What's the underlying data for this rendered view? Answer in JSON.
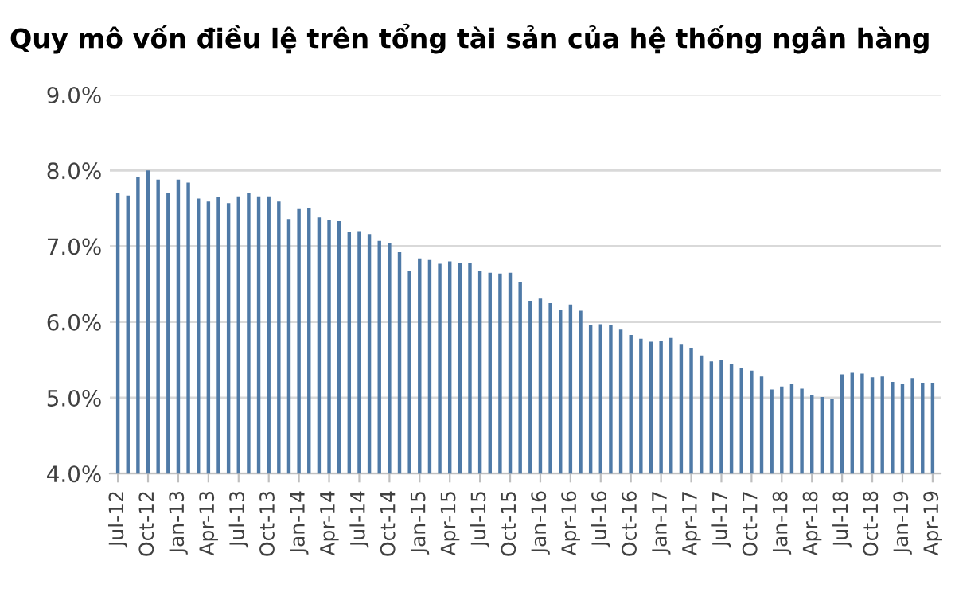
{
  "chart_data": {
    "type": "bar",
    "title": "Quy mô vốn điều lệ trên tổng tài sản của hệ thống ngân hàng",
    "categories": [
      "Jul-12",
      null,
      null,
      "Oct-12",
      null,
      null,
      "Jan-13",
      null,
      null,
      "Apr-13",
      null,
      null,
      "Jul-13",
      null,
      null,
      "Oct-13",
      null,
      null,
      "Jan-14",
      null,
      null,
      "Apr-14",
      null,
      null,
      "Jul-14",
      null,
      null,
      "Oct-14",
      null,
      null,
      "Jan-15",
      null,
      null,
      "Apr-15",
      null,
      null,
      "Jul-15",
      null,
      null,
      "Oct-15",
      null,
      null,
      "Jan-16",
      null,
      null,
      "Apr-16",
      null,
      null,
      "Jul-16",
      null,
      null,
      "Oct-16",
      null,
      null,
      "Jan-17",
      null,
      null,
      "Apr-17",
      null,
      null,
      "Jul-17",
      null,
      null,
      "Oct-17",
      null,
      null,
      "Jan-18",
      null,
      null,
      "Apr-18",
      null,
      null,
      "Jul-18",
      null,
      null,
      "Oct-18",
      null,
      null,
      "Jan-19",
      null,
      null,
      "Apr-19"
    ],
    "values": [
      7.7,
      7.67,
      7.92,
      8.0,
      7.88,
      7.71,
      7.88,
      7.84,
      7.63,
      7.59,
      7.65,
      7.57,
      7.66,
      7.71,
      7.66,
      7.66,
      7.59,
      7.36,
      7.49,
      7.51,
      7.38,
      7.35,
      7.33,
      7.19,
      7.2,
      7.16,
      7.07,
      7.04,
      6.92,
      6.68,
      6.84,
      6.82,
      6.77,
      6.8,
      6.78,
      6.78,
      6.67,
      6.65,
      6.64,
      6.65,
      6.53,
      6.28,
      6.31,
      6.25,
      6.16,
      6.23,
      6.15,
      5.96,
      5.97,
      5.96,
      5.9,
      5.83,
      5.78,
      5.74,
      5.75,
      5.79,
      5.71,
      5.66,
      5.56,
      5.48,
      5.5,
      5.45,
      5.4,
      5.36,
      5.28,
      5.11,
      5.15,
      5.18,
      5.12,
      5.03,
      5.01,
      4.98,
      5.31,
      5.33,
      5.32,
      5.27,
      5.28,
      5.21,
      5.18,
      5.26,
      5.2,
      5.2
    ],
    "color": "#4f7aa7",
    "ylim": [
      4,
      9
    ],
    "yticks": [
      {
        "value": 4,
        "label": "4.0%"
      },
      {
        "value": 5,
        "label": "5.0%"
      },
      {
        "value": 6,
        "label": "6.0%"
      },
      {
        "value": 7,
        "label": "7.0%"
      },
      {
        "value": 8,
        "label": "8.0%"
      },
      {
        "value": 9,
        "label": "9.0%"
      }
    ],
    "grid": "y"
  }
}
